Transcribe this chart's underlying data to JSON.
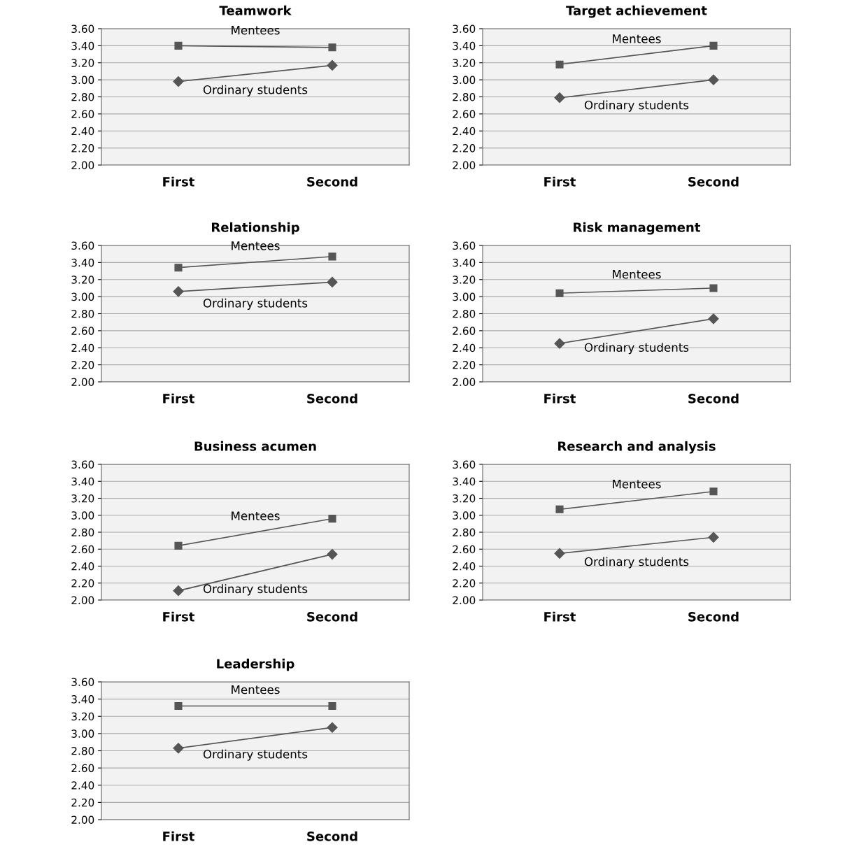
{
  "chart_data": [
    {
      "type": "line",
      "title": "Teamwork",
      "categories": [
        "First",
        "Second"
      ],
      "ylim": [
        2.0,
        3.6
      ],
      "yticks": [
        {
          "value": 2.0,
          "label": "2.00"
        },
        {
          "value": 2.2,
          "label": "2.20"
        },
        {
          "value": 2.4,
          "label": "2.40"
        },
        {
          "value": 2.6,
          "label": "2.60"
        },
        {
          "value": 2.8,
          "label": "2.80"
        },
        {
          "value": 3.0,
          "label": "3.00"
        },
        {
          "value": 3.2,
          "label": "3.20"
        },
        {
          "value": 3.4,
          "label": "3.40"
        },
        {
          "value": 3.6,
          "label": "3.60"
        }
      ],
      "grid": "y",
      "legend": false,
      "series": [
        {
          "name": "Mentees",
          "color": "#555555",
          "marker": "square",
          "values": [
            3.4,
            3.38
          ]
        },
        {
          "name": "Ordinary students",
          "color": "#555555",
          "marker": "diamond",
          "values": [
            2.98,
            3.17
          ]
        }
      ]
    },
    {
      "type": "line",
      "title": "Target achievement",
      "categories": [
        "First",
        "Second"
      ],
      "ylim": [
        2.0,
        3.6
      ],
      "yticks": [
        {
          "value": 2.0,
          "label": "2.00"
        },
        {
          "value": 2.2,
          "label": "2.20"
        },
        {
          "value": 2.4,
          "label": "2.40"
        },
        {
          "value": 2.6,
          "label": "2.60"
        },
        {
          "value": 2.8,
          "label": "2.80"
        },
        {
          "value": 3.0,
          "label": "3.00"
        },
        {
          "value": 3.2,
          "label": "3.20"
        },
        {
          "value": 3.4,
          "label": "3.40"
        },
        {
          "value": 3.6,
          "label": "3.60"
        }
      ],
      "grid": "y",
      "legend": false,
      "series": [
        {
          "name": "Mentees",
          "color": "#555555",
          "marker": "square",
          "values": [
            3.18,
            3.4
          ]
        },
        {
          "name": "Ordinary students",
          "color": "#555555",
          "marker": "diamond",
          "values": [
            2.79,
            3.0
          ]
        }
      ]
    },
    {
      "type": "line",
      "title": "Relationship",
      "categories": [
        "First",
        "Second"
      ],
      "ylim": [
        2.0,
        3.6
      ],
      "yticks": [
        {
          "value": 2.0,
          "label": "2.00"
        },
        {
          "value": 2.2,
          "label": "2.20"
        },
        {
          "value": 2.4,
          "label": "2.40"
        },
        {
          "value": 2.6,
          "label": "2.60"
        },
        {
          "value": 2.8,
          "label": "2.80"
        },
        {
          "value": 3.0,
          "label": "3.00"
        },
        {
          "value": 3.2,
          "label": "3.20"
        },
        {
          "value": 3.4,
          "label": "3.40"
        },
        {
          "value": 3.6,
          "label": "3.60"
        }
      ],
      "grid": "y",
      "legend": false,
      "series": [
        {
          "name": "Mentees",
          "color": "#555555",
          "marker": "square",
          "values": [
            3.34,
            3.47
          ]
        },
        {
          "name": "Ordinary students",
          "color": "#555555",
          "marker": "diamond",
          "values": [
            3.06,
            3.17
          ]
        }
      ]
    },
    {
      "type": "line",
      "title": "Risk management",
      "categories": [
        "First",
        "Second"
      ],
      "ylim": [
        2.0,
        3.6
      ],
      "yticks": [
        {
          "value": 2.0,
          "label": "2.00"
        },
        {
          "value": 2.2,
          "label": "2.20"
        },
        {
          "value": 2.4,
          "label": "2.40"
        },
        {
          "value": 2.6,
          "label": "2.60"
        },
        {
          "value": 2.8,
          "label": "2.80"
        },
        {
          "value": 3.0,
          "label": "3.00"
        },
        {
          "value": 3.2,
          "label": "3.20"
        },
        {
          "value": 3.4,
          "label": "3.40"
        },
        {
          "value": 3.6,
          "label": "3.60"
        }
      ],
      "grid": "y",
      "legend": false,
      "series": [
        {
          "name": "Mentees",
          "color": "#555555",
          "marker": "square",
          "values": [
            3.04,
            3.1
          ]
        },
        {
          "name": "Ordinary students",
          "color": "#555555",
          "marker": "diamond",
          "values": [
            2.45,
            2.74
          ]
        }
      ]
    },
    {
      "type": "line",
      "title": "Business acumen",
      "categories": [
        "First",
        "Second"
      ],
      "ylim": [
        2.0,
        3.6
      ],
      "yticks": [
        {
          "value": 2.0,
          "label": "2.00"
        },
        {
          "value": 2.2,
          "label": "2.20"
        },
        {
          "value": 2.4,
          "label": "2.40"
        },
        {
          "value": 2.6,
          "label": "2.60"
        },
        {
          "value": 2.8,
          "label": "2.80"
        },
        {
          "value": 3.0,
          "label": "3.00"
        },
        {
          "value": 3.2,
          "label": "3.20"
        },
        {
          "value": 3.4,
          "label": "3.40"
        },
        {
          "value": 3.6,
          "label": "3.60"
        }
      ],
      "grid": "y",
      "legend": false,
      "series": [
        {
          "name": "Mentees",
          "color": "#555555",
          "marker": "square",
          "values": [
            2.64,
            2.96
          ]
        },
        {
          "name": "Ordinary students",
          "color": "#555555",
          "marker": "diamond",
          "values": [
            2.11,
            2.54
          ]
        }
      ]
    },
    {
      "type": "line",
      "title": "Research and analysis",
      "categories": [
        "First",
        "Second"
      ],
      "ylim": [
        2.0,
        3.6
      ],
      "yticks": [
        {
          "value": 2.0,
          "label": "2.00"
        },
        {
          "value": 2.2,
          "label": "2.20"
        },
        {
          "value": 2.4,
          "label": "2.40"
        },
        {
          "value": 2.6,
          "label": "2.60"
        },
        {
          "value": 2.8,
          "label": "2.80"
        },
        {
          "value": 3.0,
          "label": "3.00"
        },
        {
          "value": 3.2,
          "label": "3.20"
        },
        {
          "value": 3.4,
          "label": "3.40"
        },
        {
          "value": 3.6,
          "label": "3.60"
        }
      ],
      "grid": "y",
      "legend": false,
      "series": [
        {
          "name": "Mentees",
          "color": "#555555",
          "marker": "square",
          "values": [
            3.07,
            3.28
          ]
        },
        {
          "name": "Ordinary students",
          "color": "#555555",
          "marker": "diamond",
          "values": [
            2.55,
            2.74
          ]
        }
      ]
    },
    {
      "type": "line",
      "title": "Leadership",
      "categories": [
        "First",
        "Second"
      ],
      "ylim": [
        2.0,
        3.6
      ],
      "yticks": [
        {
          "value": 2.0,
          "label": "2.00"
        },
        {
          "value": 2.2,
          "label": "2.20"
        },
        {
          "value": 2.4,
          "label": "2.40"
        },
        {
          "value": 2.6,
          "label": "2.60"
        },
        {
          "value": 2.8,
          "label": "2.80"
        },
        {
          "value": 3.0,
          "label": "3.00"
        },
        {
          "value": 3.2,
          "label": "3.20"
        },
        {
          "value": 3.4,
          "label": "3.40"
        },
        {
          "value": 3.6,
          "label": "3.60"
        }
      ],
      "grid": "y",
      "legend": false,
      "series": [
        {
          "name": "Mentees",
          "color": "#555555",
          "marker": "square",
          "values": [
            3.32,
            3.32
          ]
        },
        {
          "name": "Ordinary students",
          "color": "#555555",
          "marker": "diamond",
          "values": [
            2.83,
            3.07
          ]
        }
      ]
    }
  ]
}
